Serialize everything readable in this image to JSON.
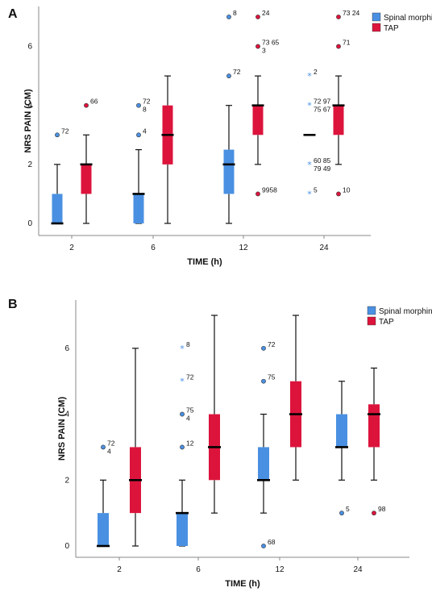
{
  "colors": {
    "spinal": "#4a90e2",
    "tap": "#dc143c",
    "axis": "#888888"
  },
  "chart_data": [
    {
      "panel": "A",
      "type": "box",
      "xlabel": "TIME (h)",
      "ylabel": "NRS PAIN (CM)",
      "ylim": [
        0,
        7
      ],
      "yticks": [
        "0",
        "2",
        "4",
        "6"
      ],
      "categories": [
        "2",
        "6",
        "12",
        "24"
      ],
      "legend": {
        "placement": "top-right",
        "entries": [
          "Spinal morphine",
          "TAP"
        ]
      },
      "series": [
        {
          "name": "Spinal morphine",
          "boxes": [
            {
              "q1": 0,
              "median": 0,
              "q3": 1,
              "lo": 0,
              "hi": 2,
              "outliers": [
                {
                  "y": 3,
                  "mark": "o",
                  "labels": [
                    "72"
                  ]
                }
              ]
            },
            {
              "q1": 0,
              "median": 1,
              "q3": 1,
              "lo": 0,
              "hi": 2.5,
              "outliers": [
                {
                  "y": 3,
                  "mark": "o",
                  "labels": [
                    "4"
                  ]
                },
                {
                  "y": 4,
                  "mark": "o",
                  "labels": [
                    "72",
                    "8"
                  ]
                }
              ]
            },
            {
              "q1": 1,
              "median": 2,
              "q3": 2.5,
              "lo": 0,
              "hi": 4,
              "outliers": [
                {
                  "y": 5,
                  "mark": "o",
                  "labels": [
                    "72"
                  ]
                },
                {
                  "y": 7,
                  "mark": "o",
                  "labels": [
                    "8"
                  ]
                }
              ]
            },
            {
              "q1": 3,
              "median": 3,
              "q3": 3,
              "lo": 3,
              "hi": 3,
              "outliers": [
                {
                  "y": 1,
                  "mark": "*",
                  "labels": [
                    "5"
                  ]
                },
                {
                  "y": 2,
                  "mark": "*",
                  "labels": [
                    "60 85",
                    "79 49"
                  ]
                },
                {
                  "y": 4,
                  "mark": "*",
                  "labels": [
                    "72 97",
                    "75 67"
                  ]
                },
                {
                  "y": 5,
                  "mark": "*",
                  "labels": [
                    "2"
                  ]
                }
              ]
            }
          ]
        },
        {
          "name": "TAP",
          "boxes": [
            {
              "q1": 1,
              "median": 2,
              "q3": 2,
              "lo": 0,
              "hi": 3,
              "outliers": [
                {
                  "y": 4,
                  "mark": "o",
                  "labels": [
                    "66"
                  ]
                }
              ]
            },
            {
              "q1": 2,
              "median": 3,
              "q3": 4,
              "lo": 0,
              "hi": 5,
              "outliers": []
            },
            {
              "q1": 3,
              "median": 4,
              "q3": 4,
              "lo": 2,
              "hi": 5,
              "outliers": [
                {
                  "y": 1,
                  "mark": "o",
                  "labels": [
                    "9958"
                  ]
                },
                {
                  "y": 6,
                  "mark": "o",
                  "labels": [
                    "73 65",
                    "3"
                  ]
                },
                {
                  "y": 7,
                  "mark": "o",
                  "labels": [
                    "24"
                  ]
                }
              ]
            },
            {
              "q1": 3,
              "median": 4,
              "q3": 4,
              "lo": 2,
              "hi": 5,
              "outliers": [
                {
                  "y": 1,
                  "mark": "o",
                  "labels": [
                    "10"
                  ]
                },
                {
                  "y": 6,
                  "mark": "o",
                  "labels": [
                    "71"
                  ]
                },
                {
                  "y": 7,
                  "mark": "o",
                  "labels": [
                    "73 24"
                  ]
                }
              ]
            }
          ]
        }
      ]
    },
    {
      "panel": "B",
      "type": "box",
      "xlabel": "TIME (h)",
      "ylabel": "NRS PAIN (CM)",
      "ylim": [
        0,
        7
      ],
      "yticks": [
        "0",
        "2",
        "4",
        "6"
      ],
      "categories": [
        "2",
        "6",
        "12",
        "24"
      ],
      "legend": {
        "placement": "top-right",
        "entries": [
          "Spinal morphine",
          "TAP"
        ]
      },
      "series": [
        {
          "name": "Spinal morphine",
          "boxes": [
            {
              "q1": 0,
              "median": 0,
              "q3": 1,
              "lo": 0,
              "hi": 2,
              "outliers": [
                {
                  "y": 3,
                  "mark": "o",
                  "labels": [
                    "72",
                    "4"
                  ]
                }
              ]
            },
            {
              "q1": 0,
              "median": 1,
              "q3": 1,
              "lo": 0,
              "hi": 2,
              "outliers": [
                {
                  "y": 3,
                  "mark": "o",
                  "labels": [
                    "12"
                  ]
                },
                {
                  "y": 4,
                  "mark": "o",
                  "labels": [
                    "75",
                    "4"
                  ]
                },
                {
                  "y": 5,
                  "mark": "*",
                  "labels": [
                    "72"
                  ]
                },
                {
                  "y": 6,
                  "mark": "*",
                  "labels": [
                    "8"
                  ]
                }
              ]
            },
            {
              "q1": 2,
              "median": 2,
              "q3": 3,
              "lo": 1,
              "hi": 4,
              "outliers": [
                {
                  "y": 0,
                  "mark": "o",
                  "labels": [
                    "68"
                  ]
                },
                {
                  "y": 5,
                  "mark": "o",
                  "labels": [
                    "75"
                  ]
                },
                {
                  "y": 6,
                  "mark": "o",
                  "labels": [
                    "72"
                  ]
                }
              ]
            },
            {
              "q1": 3,
              "median": 3,
              "q3": 4,
              "lo": 2,
              "hi": 5,
              "outliers": [
                {
                  "y": 1,
                  "mark": "o",
                  "labels": [
                    "5"
                  ]
                }
              ]
            }
          ]
        },
        {
          "name": "TAP",
          "boxes": [
            {
              "q1": 1,
              "median": 2,
              "q3": 3,
              "lo": 0,
              "hi": 6,
              "outliers": []
            },
            {
              "q1": 2,
              "median": 3,
              "q3": 4,
              "lo": 1,
              "hi": 7,
              "outliers": []
            },
            {
              "q1": 3,
              "median": 4,
              "q3": 5,
              "lo": 2,
              "hi": 7,
              "outliers": []
            },
            {
              "q1": 3,
              "median": 4,
              "q3": 4.3,
              "lo": 2,
              "hi": 5.4,
              "outliers": [
                {
                  "y": 1,
                  "mark": "o",
                  "labels": [
                    "98"
                  ]
                }
              ]
            }
          ]
        }
      ]
    }
  ]
}
